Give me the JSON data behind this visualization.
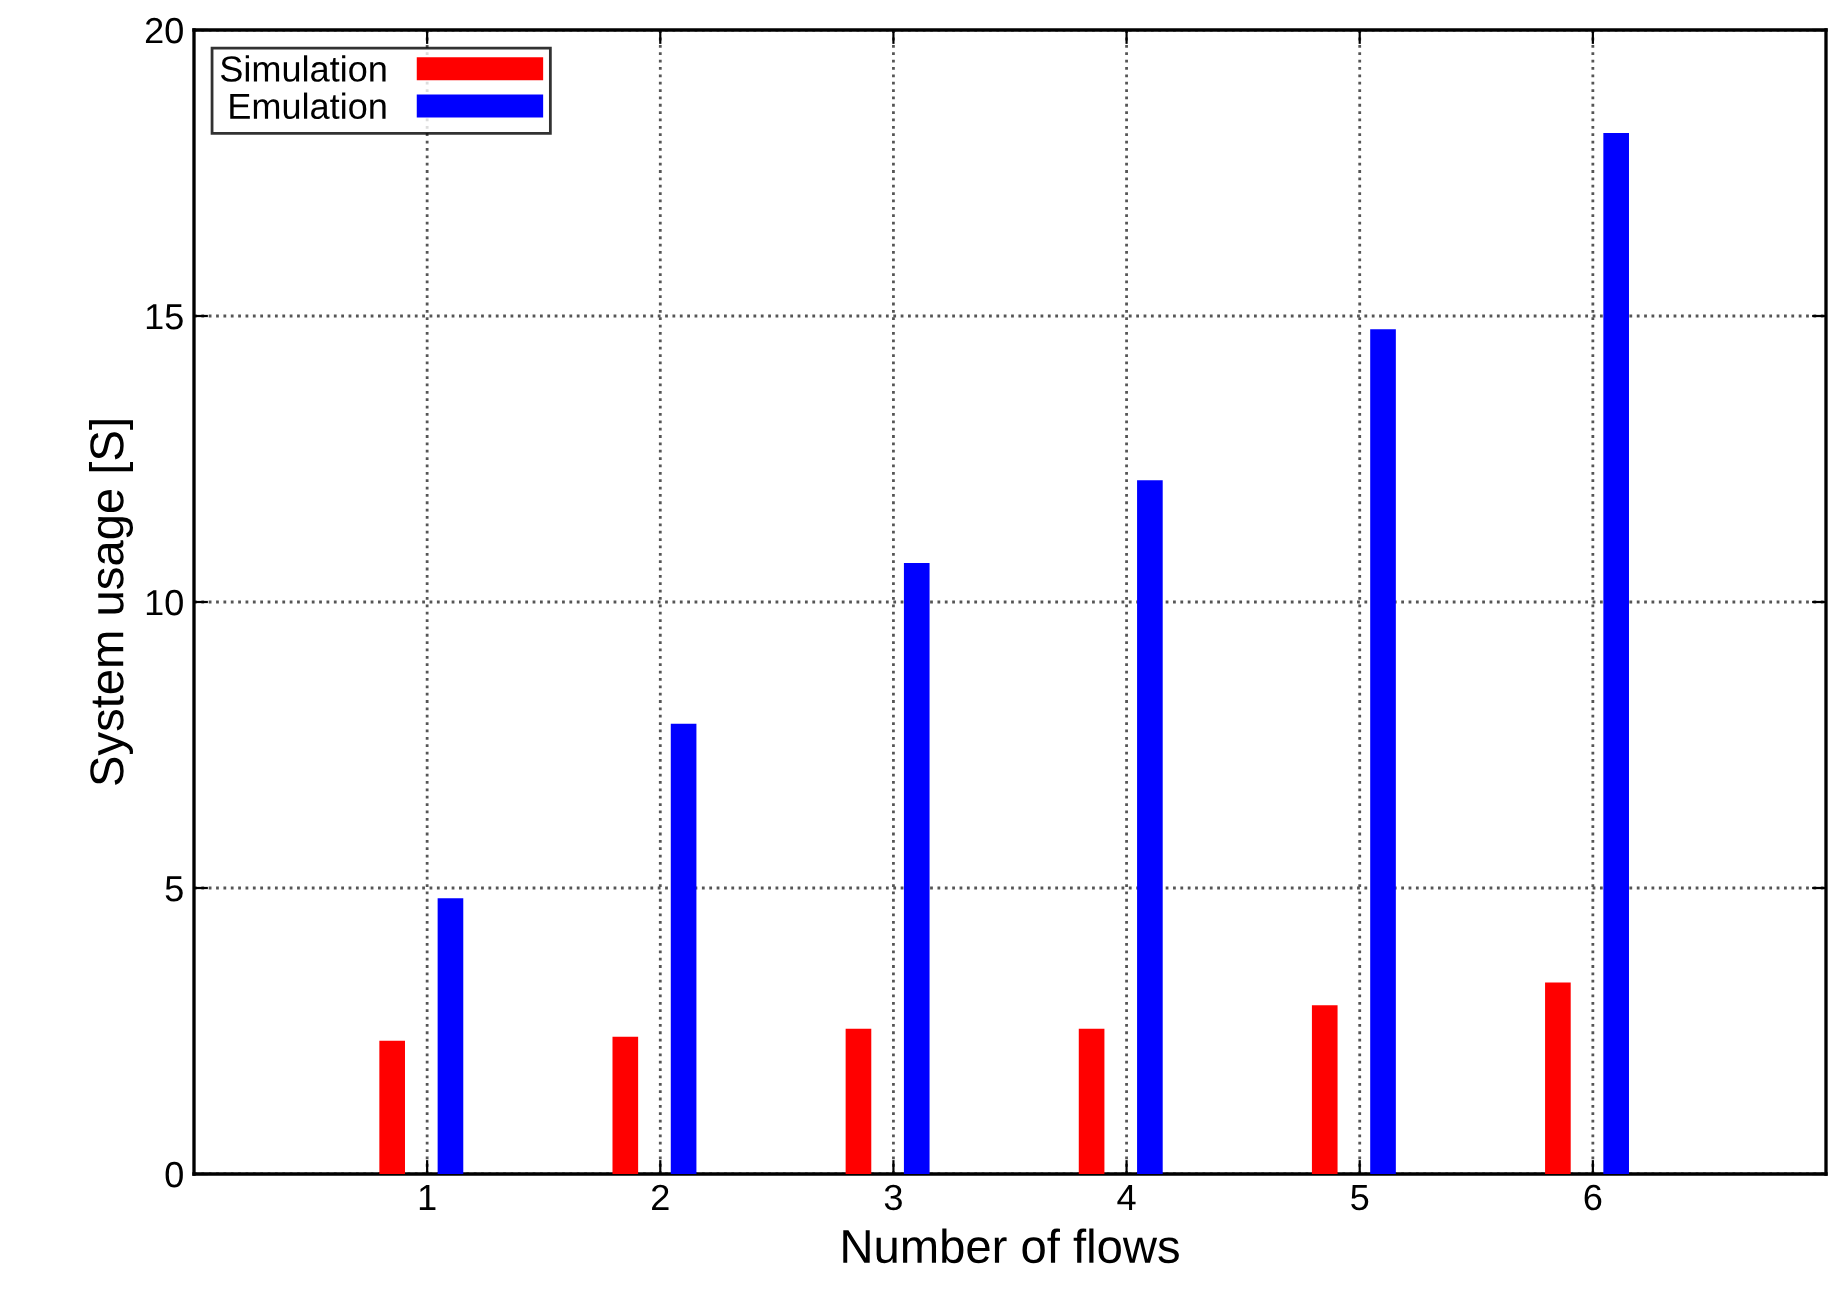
{
  "chart_data": {
    "type": "bar",
    "xlabel": "Number of flows",
    "ylabel": "System usage [S]",
    "categories": [
      "1",
      "2",
      "3",
      "4",
      "5",
      "6"
    ],
    "series": [
      {
        "name": "Simulation",
        "color": "#ff0000",
        "values": [
          2.33,
          2.4,
          2.54,
          2.54,
          2.95,
          3.35
        ]
      },
      {
        "name": "Emulation",
        "color": "#0000ff",
        "values": [
          4.82,
          7.87,
          10.68,
          12.13,
          14.77,
          18.2
        ]
      }
    ],
    "ylim": [
      0,
      20
    ],
    "yticks": [
      0,
      5,
      10,
      15,
      20
    ],
    "grid": true,
    "legend": "top left"
  }
}
